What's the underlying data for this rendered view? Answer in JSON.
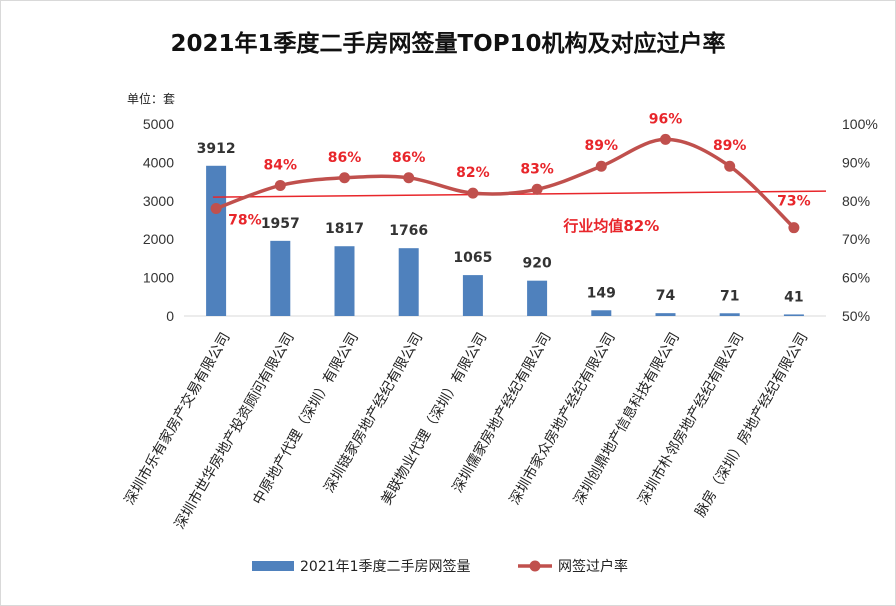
{
  "chart_data": {
    "type": "bar",
    "title": "2021年1季度二手房网签量TOP10机构及对应过户率",
    "unit_label": "单位：套",
    "categories": [
      "深圳市乐有家房产交易有限公司",
      "深圳市世华房地产投资顾问有限公司",
      "中原地产代理（深圳）有限公司",
      "深圳链家房地产经纪有限公司",
      "美联物业代理（深圳）有限公司",
      "深圳儒家房地产经纪有限公司",
      "深圳市家众房地产经纪有限公司",
      "深圳创鼎地产信息科技有限公司",
      "深圳市朴邻房地产经纪有限公司",
      "脉房（深圳）房地产经纪有限公司"
    ],
    "series": [
      {
        "name": "2021年1季度二手房网签量",
        "type": "bar",
        "axis": "left",
        "color": "#4f81bd",
        "values": [
          3912,
          1957,
          1817,
          1766,
          1065,
          920,
          149,
          74,
          71,
          41
        ],
        "labels": [
          "3912",
          "1957",
          "1817",
          "1766",
          "1065",
          "920",
          "149",
          "74",
          "71",
          "41"
        ]
      },
      {
        "name": "网签过户率",
        "type": "line",
        "axis": "right",
        "color": "#c0504d",
        "values": [
          78,
          84,
          86,
          86,
          82,
          83,
          89,
          96,
          89,
          73
        ],
        "labels": [
          "78%",
          "84%",
          "86%",
          "86%",
          "82%",
          "83%",
          "89%",
          "96%",
          "89%",
          "73%"
        ]
      }
    ],
    "left_axis": {
      "ylim": [
        0,
        5000
      ],
      "ticks": [
        "0",
        "1000",
        "2000",
        "3000",
        "4000",
        "5000"
      ]
    },
    "right_axis": {
      "ylim": [
        50,
        100
      ],
      "ticks": [
        "50%",
        "60%",
        "70%",
        "80%",
        "90%",
        "100%"
      ]
    },
    "average": {
      "value": 82,
      "label": "行业均值82%",
      "color": "#e8262b"
    },
    "label_color": "#e8262b",
    "grid": false,
    "legend_position": "bottom"
  }
}
